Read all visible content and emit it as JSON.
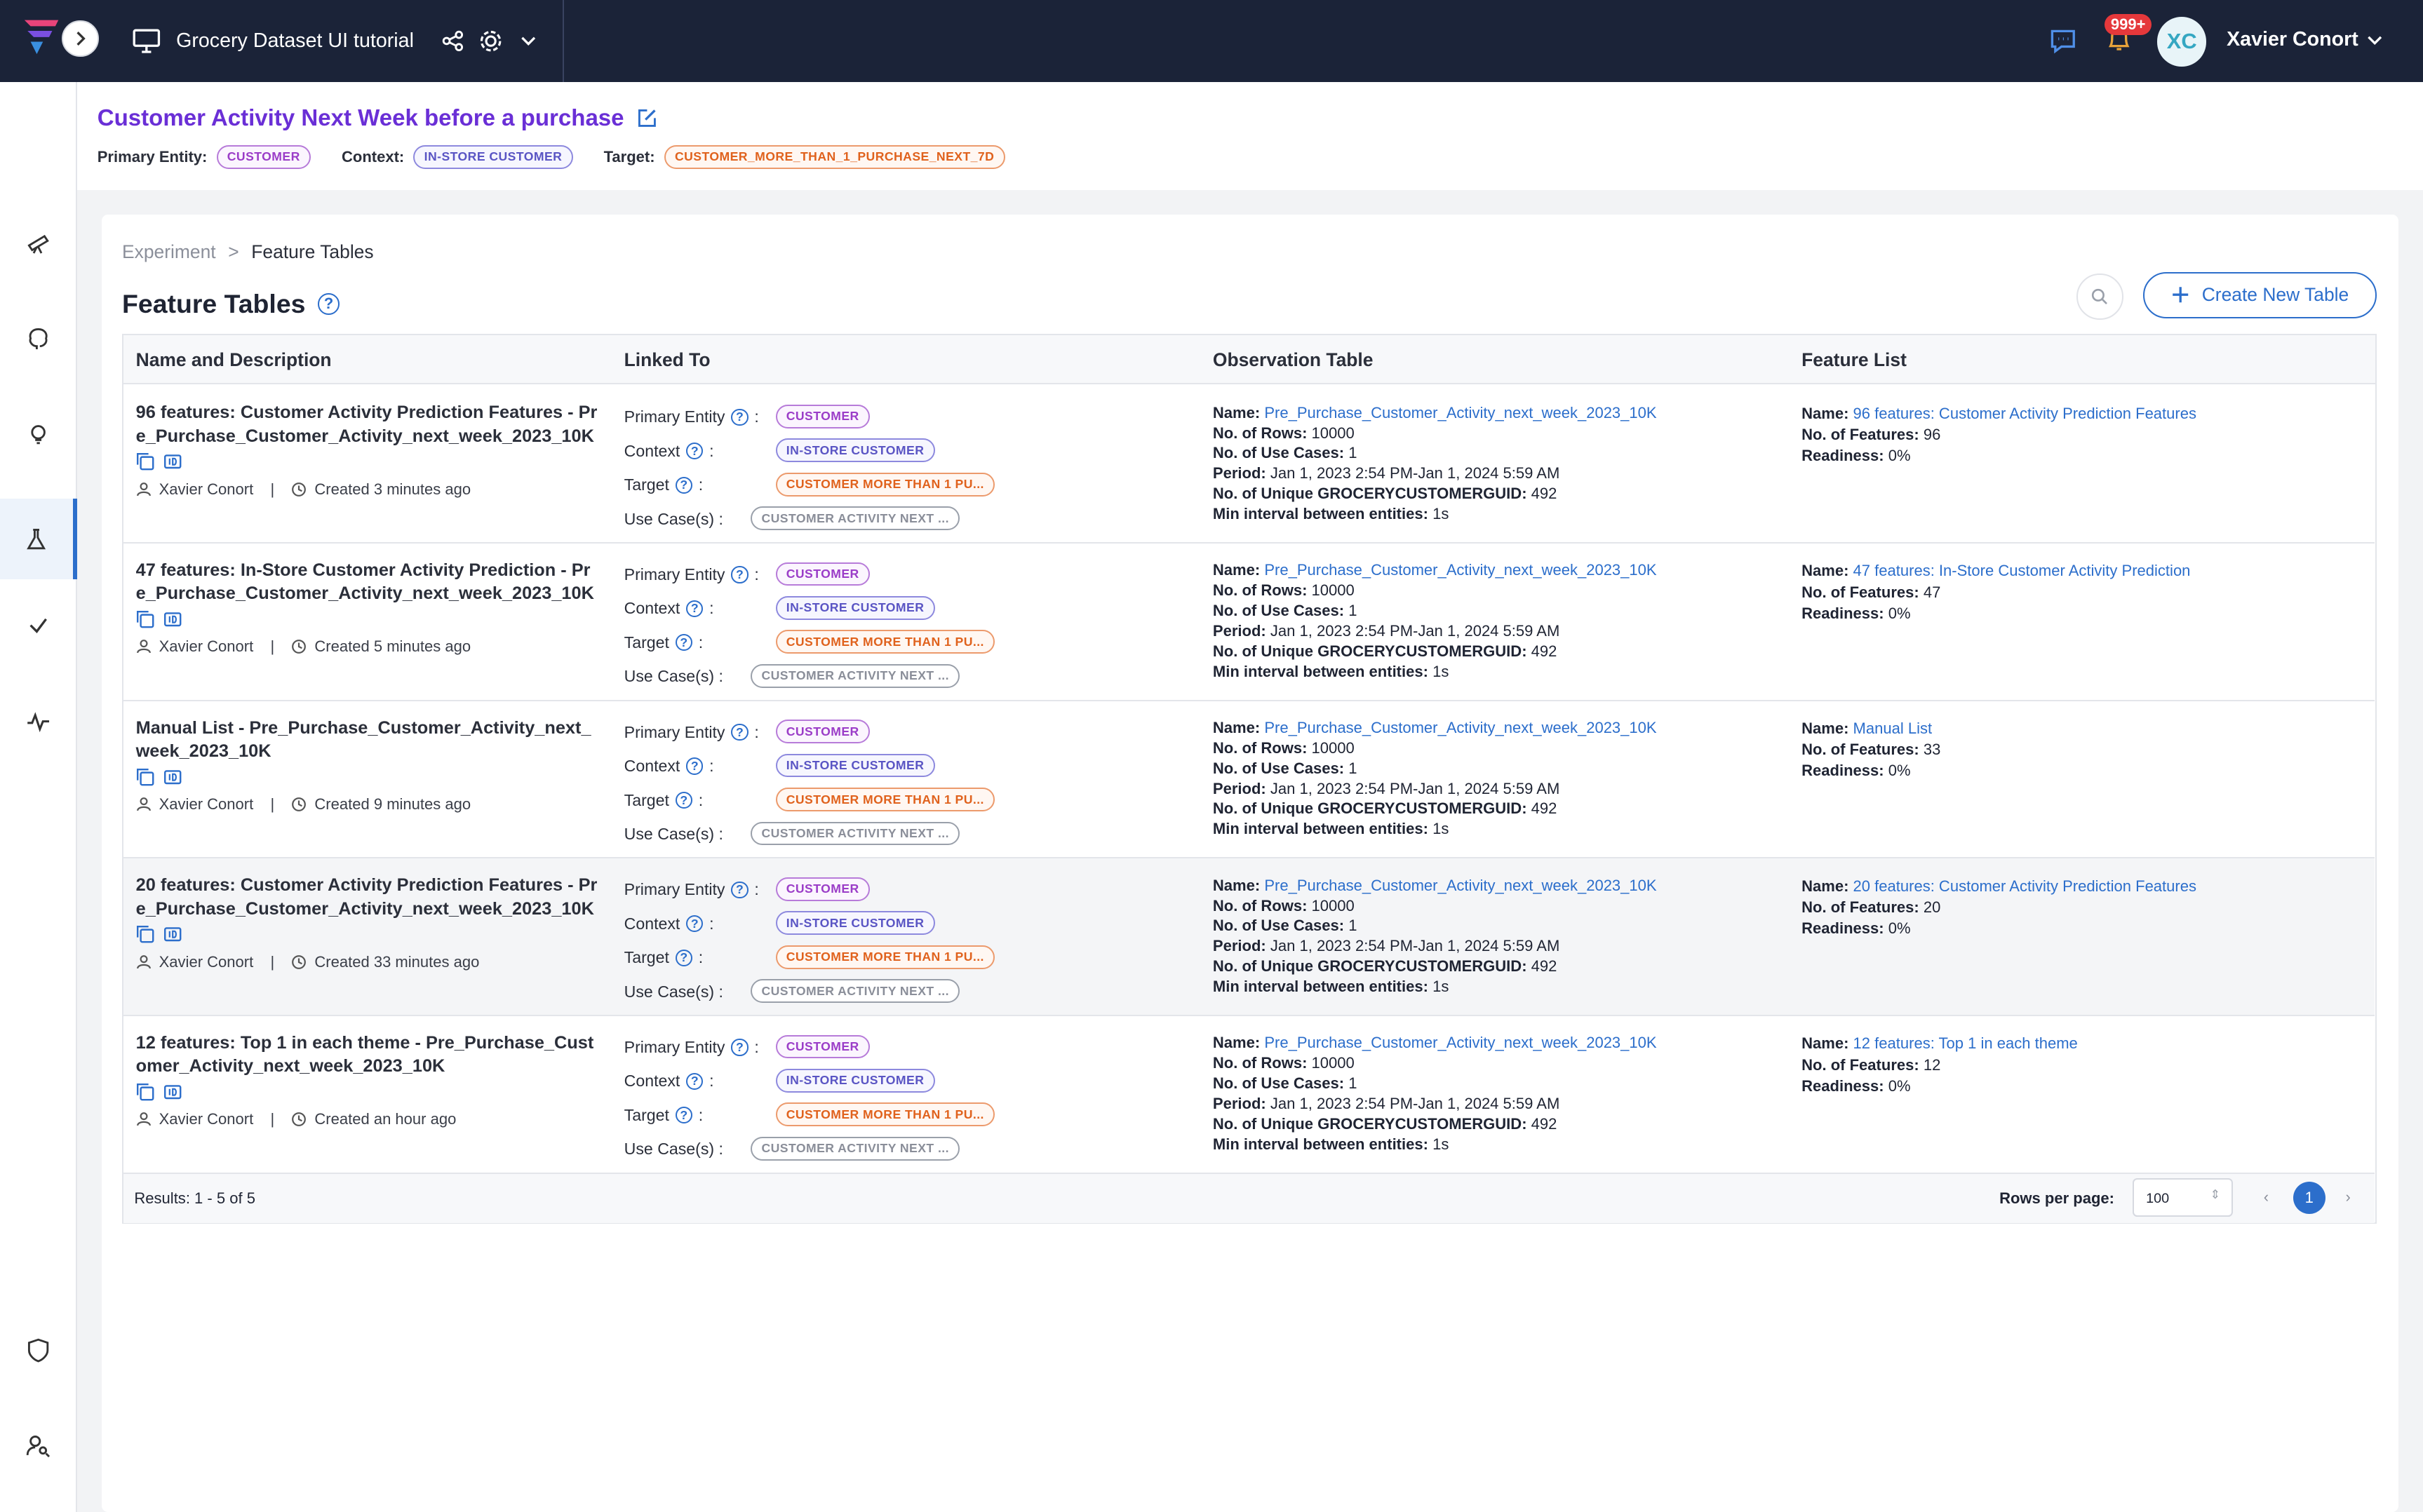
{
  "topbar": {
    "project_title": "Grocery Dataset UI tutorial",
    "notif_count": "999+",
    "avatar_initials": "XC",
    "user_name": "Xavier Conort"
  },
  "header": {
    "title": "Customer Activity Next Week before a purchase",
    "primary_entity_label": "Primary Entity:",
    "primary_entity": "CUSTOMER",
    "context_label": "Context:",
    "context": "IN-STORE CUSTOMER",
    "target_label": "Target:",
    "target": "CUSTOMER_MORE_THAN_1_PURCHASE_NEXT_7D"
  },
  "breadcrumb": {
    "root": "Experiment",
    "sep": ">",
    "current": "Feature Tables"
  },
  "page_title": "Feature Tables",
  "create_button": "Create New Table",
  "columns": [
    "Name and Description",
    "Linked To",
    "Observation Table",
    "Feature List"
  ],
  "linked_labels": {
    "primary_entity": "Primary Entity",
    "context": "Context",
    "target": "Target",
    "use_cases": "Use Case(s) :"
  },
  "obs_labels": {
    "name": "Name:",
    "rows": "No. of Rows:",
    "use_cases": "No. of Use Cases:",
    "period": "Period:",
    "unique": "No. of Unique GROCERYCUSTOMERGUID:",
    "interval": "Min interval between entities:"
  },
  "fl_labels": {
    "name": "Name:",
    "features": "No. of Features:",
    "readiness": "Readiness:"
  },
  "rows": [
    {
      "title": "96 features: Customer Activity Prediction Features - Pre_Purchase_Customer_Activity_next_week_2023_10K",
      "author": "Xavier Conort",
      "created": "Created 3 minutes ago",
      "primary_entity": "CUSTOMER",
      "context": "IN-STORE CUSTOMER",
      "target": "CUSTOMER MORE THAN 1 PU...",
      "use_case": "CUSTOMER ACTIVITY NEXT ...",
      "obs_name": "Pre_Purchase_Customer_Activity_next_week_2023_10K",
      "obs_rows": "10000",
      "obs_use_cases": "1",
      "obs_period": "Jan 1, 2023 2:54 PM-Jan 1, 2024 5:59 AM",
      "obs_unique": "492",
      "obs_interval": "1s",
      "fl_name": "96 features: Customer Activity Prediction Features",
      "fl_features": "96",
      "fl_readiness": "0%"
    },
    {
      "title": "47 features: In-Store Customer Activity Prediction - Pre_Purchase_Customer_Activity_next_week_2023_10K",
      "author": "Xavier Conort",
      "created": "Created 5 minutes ago",
      "primary_entity": "CUSTOMER",
      "context": "IN-STORE CUSTOMER",
      "target": "CUSTOMER MORE THAN 1 PU...",
      "use_case": "CUSTOMER ACTIVITY NEXT ...",
      "obs_name": "Pre_Purchase_Customer_Activity_next_week_2023_10K",
      "obs_rows": "10000",
      "obs_use_cases": "1",
      "obs_period": "Jan 1, 2023 2:54 PM-Jan 1, 2024 5:59 AM",
      "obs_unique": "492",
      "obs_interval": "1s",
      "fl_name": "47 features: In-Store Customer Activity Prediction",
      "fl_features": "47",
      "fl_readiness": "0%"
    },
    {
      "title": "Manual List - Pre_Purchase_Customer_Activity_next_week_2023_10K",
      "author": "Xavier Conort",
      "created": "Created 9 minutes ago",
      "primary_entity": "CUSTOMER",
      "context": "IN-STORE CUSTOMER",
      "target": "CUSTOMER MORE THAN 1 PU...",
      "use_case": "CUSTOMER ACTIVITY NEXT ...",
      "obs_name": "Pre_Purchase_Customer_Activity_next_week_2023_10K",
      "obs_rows": "10000",
      "obs_use_cases": "1",
      "obs_period": "Jan 1, 2023 2:54 PM-Jan 1, 2024 5:59 AM",
      "obs_unique": "492",
      "obs_interval": "1s",
      "fl_name": "Manual List",
      "fl_features": "33",
      "fl_readiness": "0%"
    },
    {
      "title": "20 features: Customer Activity Prediction Features - Pre_Purchase_Customer_Activity_next_week_2023_10K",
      "author": "Xavier Conort",
      "created": "Created 33 minutes ago",
      "primary_entity": "CUSTOMER",
      "context": "IN-STORE CUSTOMER",
      "target": "CUSTOMER MORE THAN 1 PU...",
      "use_case": "CUSTOMER ACTIVITY NEXT ...",
      "obs_name": "Pre_Purchase_Customer_Activity_next_week_2023_10K",
      "obs_rows": "10000",
      "obs_use_cases": "1",
      "obs_period": "Jan 1, 2023 2:54 PM-Jan 1, 2024 5:59 AM",
      "obs_unique": "492",
      "obs_interval": "1s",
      "fl_name": "20 features: Customer Activity Prediction Features",
      "fl_features": "20",
      "fl_readiness": "0%"
    },
    {
      "title": "12 features: Top 1 in each theme - Pre_Purchase_Customer_Activity_next_week_2023_10K",
      "author": "Xavier Conort",
      "created": "Created an hour ago",
      "primary_entity": "CUSTOMER",
      "context": "IN-STORE CUSTOMER",
      "target": "CUSTOMER MORE THAN 1 PU...",
      "use_case": "CUSTOMER ACTIVITY NEXT ...",
      "obs_name": "Pre_Purchase_Customer_Activity_next_week_2023_10K",
      "obs_rows": "10000",
      "obs_use_cases": "1",
      "obs_period": "Jan 1, 2023 2:54 PM-Jan 1, 2024 5:59 AM",
      "obs_unique": "492",
      "obs_interval": "1s",
      "fl_name": "12 features: Top 1 in each theme",
      "fl_features": "12",
      "fl_readiness": "0%"
    }
  ],
  "footer": {
    "results": "Results: 1 - 5 of 5",
    "rows_per_page_label": "Rows per page:",
    "rows_per_page": "100",
    "current_page": "1"
  },
  "sidebar_icons": [
    "telescope-icon",
    "brain-icon",
    "lightbulb-icon",
    "flask-icon",
    "check-icon",
    "activity-icon",
    "shield-icon",
    "user-search-icon"
  ],
  "colors": {
    "accent": "#2c6ecb",
    "title": "#6a2fd6",
    "topbar": "#1b2338"
  }
}
